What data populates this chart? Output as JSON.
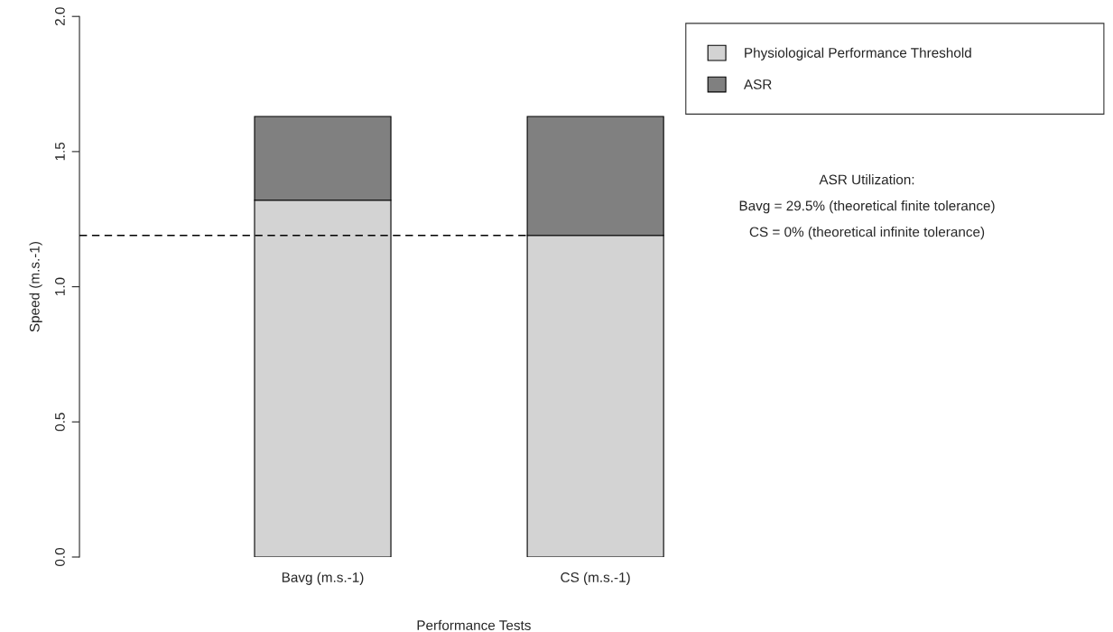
{
  "chart_data": {
    "type": "bar",
    "stacked": true,
    "xlabel": "Performance Tests",
    "ylabel": "Speed (m.s.-1)",
    "categories": [
      "Bavg (m.s.-1)",
      "CS (m.s.-1)"
    ],
    "series": [
      {
        "name": "Physiological Performance Threshold",
        "color": "#d3d3d3",
        "values": [
          1.32,
          1.19
        ]
      },
      {
        "name": "ASR",
        "color": "#808080",
        "values": [
          0.31,
          0.44
        ]
      }
    ],
    "ylim": [
      0,
      2
    ],
    "yticks": [
      {
        "value": 0,
        "label": "0.0"
      },
      {
        "value": 0.5,
        "label": "0.5"
      },
      {
        "value": 1,
        "label": "1.0"
      },
      {
        "value": 1.5,
        "label": "1.5"
      },
      {
        "value": 2,
        "label": "2.0"
      }
    ],
    "ref_lines": [
      {
        "axis": "y",
        "value": 1.19,
        "line_style": "dashed",
        "color": "#000000"
      }
    ],
    "annotations": [
      "ASR Utilization:",
      "Bavg = 29.5% (theoretical finite tolerance)",
      "CS = 0% (theoretical infinite tolerance)"
    ],
    "legend": "top right",
    "grid": false
  }
}
